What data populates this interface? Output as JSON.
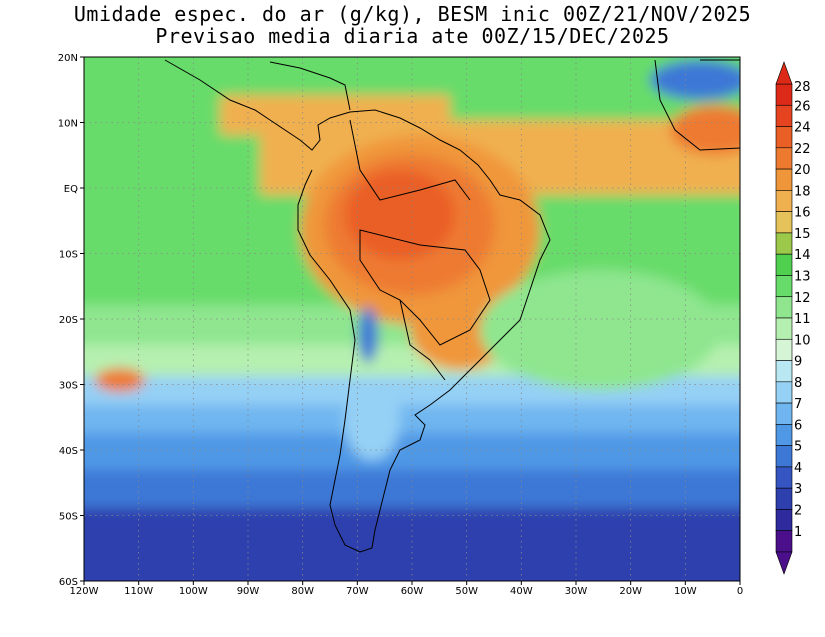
{
  "title": {
    "line1": "Umidade espec. do ar (g/kg), BESM inic 00Z/21/NOV/2025",
    "line2": "Previsao media diaria ate 00Z/15/DEC/2025"
  },
  "map": {
    "lon_range": [
      -120,
      0
    ],
    "lat_range": [
      -60,
      20
    ],
    "grid": "dotted",
    "lon_ticks": [
      "120W",
      "110W",
      "100W",
      "90W",
      "80W",
      "70W",
      "60W",
      "50W",
      "40W",
      "30W",
      "20W",
      "10W",
      "0"
    ],
    "lat_ticks": [
      "20N",
      "10N",
      "EQ",
      "10S",
      "20S",
      "30S",
      "40S",
      "50S",
      "60S"
    ]
  },
  "colorbar": {
    "levels": [
      "1",
      "2",
      "3",
      "4",
      "5",
      "6",
      "7",
      "8",
      "9",
      "10",
      "11",
      "12",
      "13",
      "14",
      "15",
      "16",
      "18",
      "20",
      "22",
      "24",
      "26",
      "28"
    ],
    "colors": [
      "#4b0f8c",
      "#2f2a9e",
      "#2e3fae",
      "#3556c2",
      "#3e78d6",
      "#4f98e6",
      "#6fb6f0",
      "#95d0f5",
      "#b9e8f2",
      "#d6f5d6",
      "#b6f0b0",
      "#8fe68f",
      "#67dc6a",
      "#4fd14f",
      "#9cc94a",
      "#e6c25a",
      "#f0b050",
      "#f0963a",
      "#ee7a30",
      "#ea5f26",
      "#e64420",
      "#dd2a18"
    ]
  }
}
